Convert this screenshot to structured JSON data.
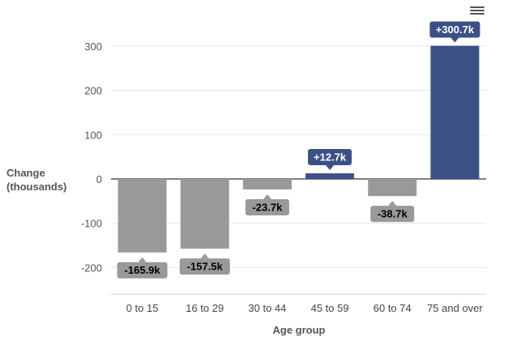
{
  "chart_data": {
    "type": "bar",
    "categories": [
      "0 to 15",
      "16 to 29",
      "30 to 44",
      "45 to 59",
      "60 to 74",
      "75 and over"
    ],
    "values": [
      -165.9,
      -157.5,
      -23.7,
      12.7,
      -38.7,
      300.7
    ],
    "data_labels": [
      "-165.9k",
      "-157.5k",
      "-23.7k",
      "+12.7k",
      "-38.7k",
      "+300.7k"
    ],
    "title": "",
    "xlabel": "Age group",
    "ylabel_line1": "Change",
    "ylabel_line2": "(thousands)",
    "ylim": [
      -260,
      300
    ],
    "yticks": [
      -200,
      -100,
      0,
      100,
      200,
      300
    ],
    "grid": true,
    "colors": {
      "positive": "#3b5186",
      "negative": "#999999"
    }
  },
  "toolbar": {
    "menu_icon": "hamburger-menu-icon"
  }
}
